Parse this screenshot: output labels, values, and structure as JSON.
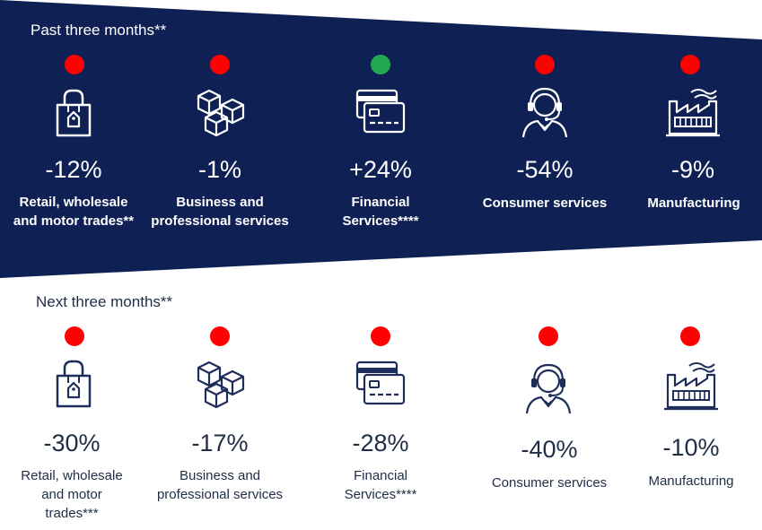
{
  "colors": {
    "banner": "#0f2154",
    "negative": "#ff0000",
    "positive": "#1fa84f",
    "icon_light": "#ffffff",
    "icon_dark": "#1f2d5b"
  },
  "past": {
    "title": "Past three months**",
    "items": [
      {
        "icon": "shopping-bag-icon",
        "status": "negative",
        "value": "-12%",
        "label_lines": [
          "Retail, wholesale",
          "and motor trades**"
        ]
      },
      {
        "icon": "boxes-icon",
        "status": "negative",
        "value": "-1%",
        "label_lines": [
          "Business and",
          "professional services"
        ]
      },
      {
        "icon": "credit-cards-icon",
        "status": "positive",
        "value": "+24%",
        "label_lines": [
          "Financial",
          "Services****"
        ]
      },
      {
        "icon": "headset-agent-icon",
        "status": "negative",
        "value": "-54%",
        "label_lines": [
          "Consumer services"
        ]
      },
      {
        "icon": "factory-icon",
        "status": "negative",
        "value": "-9%",
        "label_lines": [
          "Manufacturing"
        ]
      }
    ]
  },
  "next": {
    "title": "Next three months**",
    "items": [
      {
        "icon": "shopping-bag-icon",
        "status": "negative",
        "value": "-30%",
        "label_lines": [
          "Retail, wholesale",
          "and motor",
          "trades***"
        ]
      },
      {
        "icon": "boxes-icon",
        "status": "negative",
        "value": "-17%",
        "label_lines": [
          "Business and",
          "professional services"
        ]
      },
      {
        "icon": "credit-cards-icon",
        "status": "negative",
        "value": "-28%",
        "label_lines": [
          "Financial",
          "Services****"
        ]
      },
      {
        "icon": "headset-agent-icon",
        "status": "negative",
        "value": "-40%",
        "label_lines": [
          "Consumer services"
        ]
      },
      {
        "icon": "factory-icon",
        "status": "negative",
        "value": "-10%",
        "label_lines": [
          "Manufacturing"
        ]
      }
    ]
  }
}
